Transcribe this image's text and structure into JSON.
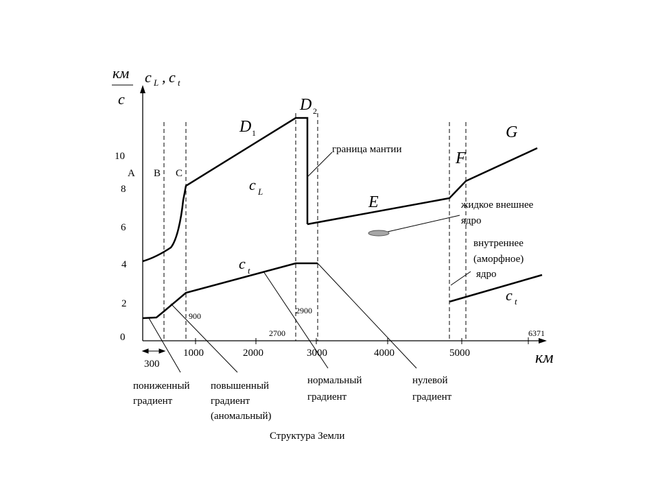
{
  "y_unit": {
    "numerator": "км",
    "denominator": "с"
  },
  "y_title": {
    "c1": "c",
    "s1": "L",
    "comma": ",",
    "c2": "c",
    "s2": "t"
  },
  "y_ticks": [
    "0",
    "2",
    "4",
    "6",
    "8",
    "10"
  ],
  "x_ticks": [
    "1000",
    "2000",
    "3000",
    "4000",
    "5000"
  ],
  "x_unit": "км",
  "x_marks": {
    "m300": "300",
    "m900": "900",
    "m2700": "2700",
    "m2900": "2900",
    "m6371": "6371"
  },
  "zones": {
    "A": "A",
    "B": "B",
    "C": "C"
  },
  "region_letters": {
    "D1": "D",
    "D1_sub": "1",
    "D2": "D",
    "D2_sub": "2",
    "E": "E",
    "F": "F",
    "G": "G"
  },
  "curve_labels": {
    "cL_c": "c",
    "cL_sub": "L",
    "ct1_c": "c",
    "ct1_sub": "t",
    "ct2_c": "c",
    "ct2_sub": "t"
  },
  "annotations": {
    "mantle": "граница мантии",
    "outer_core_1": "жидкое внешнее",
    "outer_core_2": "ядро",
    "inner_core_1": "внутреннее",
    "inner_core_2": "(аморфное)",
    "inner_core_3": "ядро"
  },
  "gradients": {
    "lowered_1": "пониженный",
    "lowered_2": "градиент",
    "raised_1": "повышенный",
    "raised_2": "градиент",
    "raised_3": "(аномальный)",
    "normal_1": "нормальный",
    "normal_2": "градиент",
    "zero_1": "нулевой",
    "zero_2": "градиент"
  },
  "caption": "Структура Земли",
  "colors": {
    "line": "#000000",
    "marker_fill": "#a6a6a6"
  }
}
